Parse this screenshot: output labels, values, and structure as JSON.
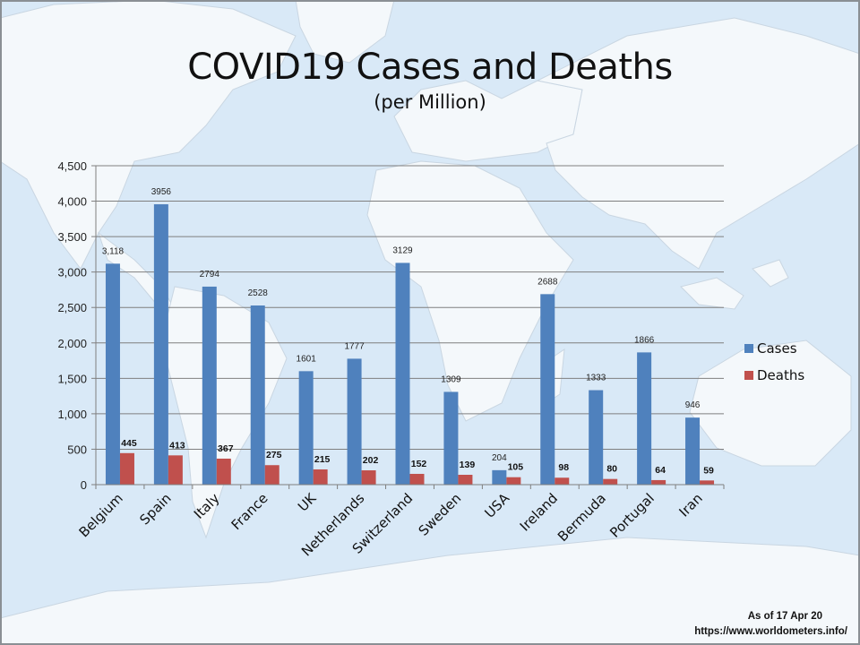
{
  "chart_data": {
    "type": "bar",
    "title": "COVID19 Cases and Deaths",
    "subtitle": "(per Million)",
    "xlabel": "",
    "ylabel": "",
    "ylim": [
      0,
      4500
    ],
    "yticks": [
      0,
      500,
      1000,
      1500,
      2000,
      2500,
      3000,
      3500,
      4000,
      4500
    ],
    "ytick_labels": [
      "0",
      "500",
      "1,000",
      "1,500",
      "2,000",
      "2,500",
      "3,000",
      "3,500",
      "4,000",
      "4,500"
    ],
    "grid": true,
    "legend_position": "right",
    "categories": [
      "Belgium",
      "Spain",
      "Italy",
      "France",
      "UK",
      "Netherlands",
      "Switzerland",
      "Sweden",
      "USA",
      "Ireland",
      "Bermuda",
      "Portugal",
      "Iran"
    ],
    "series": [
      {
        "name": "Cases",
        "color": "#4f81bd",
        "values": [
          3118,
          3956,
          2794,
          2528,
          1601,
          1777,
          3129,
          1309,
          204,
          2688,
          1333,
          1866,
          946
        ],
        "labels": [
          "3,118",
          "3956",
          "2794",
          "2528",
          "1601",
          "1777",
          "3129",
          "1309",
          "204",
          "2688",
          "1333",
          "1866",
          "946"
        ]
      },
      {
        "name": "Deaths",
        "color": "#c0504d",
        "values": [
          445,
          413,
          367,
          275,
          215,
          202,
          152,
          139,
          105,
          98,
          80,
          64,
          59
        ],
        "labels": [
          "445",
          "413",
          "367",
          "275",
          "215",
          "202",
          "152",
          "139",
          "105",
          "98",
          "80",
          "64",
          "59"
        ]
      }
    ]
  },
  "footer": {
    "as_of": "As of 17 Apr 20",
    "source": "https://www.worldometers.info/"
  }
}
